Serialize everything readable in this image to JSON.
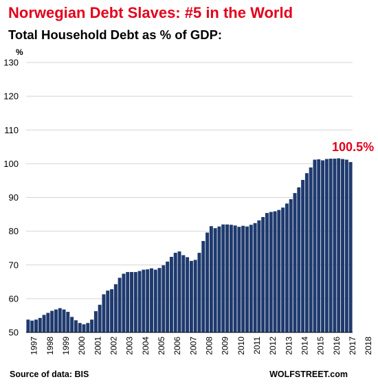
{
  "chart_data": {
    "type": "bar",
    "title": "Norwegian Debt Slaves: #5 in the World",
    "subtitle": "Total Household Debt as % of GDP:",
    "ylabel": "%",
    "ylim": [
      50,
      130
    ],
    "yticks": [
      50,
      60,
      70,
      80,
      90,
      100,
      110,
      120,
      130
    ],
    "grid": true,
    "x_tick_labels": [
      "1997",
      "1998",
      "1999",
      "2000",
      "2001",
      "2002",
      "2003",
      "2004",
      "2005",
      "2006",
      "2007",
      "2008",
      "2009",
      "2010",
      "2011",
      "2012",
      "2013",
      "2014",
      "2015",
      "2016",
      "2017",
      "2018"
    ],
    "annotation": "100.5%",
    "source": "Source of data: BIS",
    "brand": "WOLFSTREET.com",
    "bar_color": "#1f3a6e",
    "values": [
      53.8,
      53.5,
      53.8,
      54.3,
      55.2,
      55.8,
      56.4,
      56.8,
      57.2,
      56.8,
      56.1,
      54.6,
      53.6,
      52.8,
      52.4,
      52.8,
      53.8,
      56.3,
      58.2,
      61.3,
      62.4,
      62.8,
      64.3,
      66.2,
      67.4,
      67.9,
      67.9,
      67.9,
      68.2,
      68.6,
      68.7,
      69.0,
      68.6,
      69.1,
      69.9,
      71.0,
      72.4,
      73.6,
      74.0,
      72.9,
      72.3,
      71.2,
      71.5,
      73.6,
      77.1,
      79.6,
      81.5,
      80.9,
      81.4,
      82.0,
      82.0,
      81.9,
      81.7,
      81.3,
      81.6,
      81.4,
      81.9,
      82.4,
      83.2,
      84.2,
      85.4,
      85.7,
      85.9,
      86.3,
      87.0,
      88.2,
      89.5,
      91.3,
      93.0,
      95.2,
      97.2,
      98.9,
      101.2,
      101.3,
      101.0,
      101.4,
      101.5,
      101.5,
      101.6,
      101.4,
      101.2,
      100.5
    ]
  }
}
